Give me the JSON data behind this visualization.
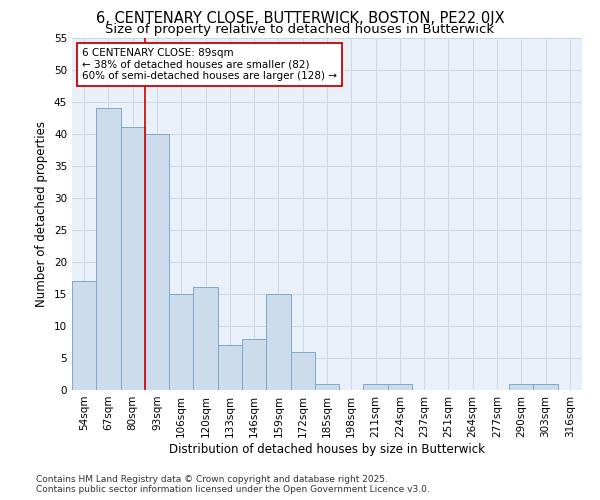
{
  "title": "6, CENTENARY CLOSE, BUTTERWICK, BOSTON, PE22 0JX",
  "subtitle": "Size of property relative to detached houses in Butterwick",
  "xlabel": "Distribution of detached houses by size in Butterwick",
  "ylabel": "Number of detached properties",
  "categories": [
    "54sqm",
    "67sqm",
    "80sqm",
    "93sqm",
    "106sqm",
    "120sqm",
    "133sqm",
    "146sqm",
    "159sqm",
    "172sqm",
    "185sqm",
    "198sqm",
    "211sqm",
    "224sqm",
    "237sqm",
    "251sqm",
    "264sqm",
    "277sqm",
    "290sqm",
    "303sqm",
    "316sqm"
  ],
  "values": [
    17,
    44,
    41,
    40,
    15,
    16,
    7,
    8,
    15,
    6,
    1,
    0,
    1,
    1,
    0,
    0,
    0,
    0,
    1,
    1,
    0
  ],
  "bar_color": "#cddcec",
  "bar_edge_color": "#7aaac8",
  "grid_color": "#c8d4e4",
  "background_color": "#eaf0f8",
  "plot_bg_color": "#eaf0f8",
  "vline_x_index": 2,
  "vline_color": "#cc0000",
  "annotation_line1": "6 CENTENARY CLOSE: 89sqm",
  "annotation_line2": "← 38% of detached houses are smaller (82)",
  "annotation_line3": "60% of semi-detached houses are larger (128) →",
  "annotation_box_color": "white",
  "annotation_box_edge": "#cc0000",
  "ylim": [
    0,
    55
  ],
  "yticks": [
    0,
    5,
    10,
    15,
    20,
    25,
    30,
    35,
    40,
    45,
    50,
    55
  ],
  "footer": "Contains HM Land Registry data © Crown copyright and database right 2025.\nContains public sector information licensed under the Open Government Licence v3.0.",
  "title_fontsize": 10.5,
  "subtitle_fontsize": 9.5,
  "ylabel_fontsize": 8.5,
  "xlabel_fontsize": 8.5,
  "tick_fontsize": 7.5,
  "annotation_fontsize": 7.5,
  "footer_fontsize": 6.5
}
